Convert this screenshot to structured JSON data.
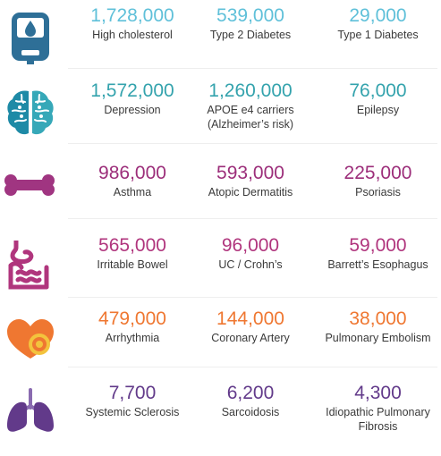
{
  "colors": {
    "row1": "#5fc0d9",
    "row2": "#34a3ad",
    "row3": "#9c2e7a",
    "row4": "#b0357d",
    "row5": "#ef7731",
    "row6": "#623a8a"
  },
  "rows": [
    {
      "icon": "glucose-meter-icon",
      "stats": [
        {
          "value": "1,728,000",
          "label": "High cholesterol"
        },
        {
          "value": "539,000",
          "label": "Type 2 Diabetes"
        },
        {
          "value": "29,000",
          "label": "Type 1 Diabetes"
        }
      ]
    },
    {
      "icon": "brain-icon",
      "stats": [
        {
          "value": "1,572,000",
          "label": "Depression"
        },
        {
          "value": "1,260,000",
          "label": "APOE e4 carriers",
          "label2": "(Alzheimer’s risk)"
        },
        {
          "value": "76,000",
          "label": "Epilepsy"
        }
      ]
    },
    {
      "icon": "bone-icon",
      "stats": [
        {
          "value": "986,000",
          "label": "Asthma"
        },
        {
          "value": "593,000",
          "label": "Atopic Dermatitis"
        },
        {
          "value": "225,000",
          "label": "Psoriasis"
        }
      ]
    },
    {
      "icon": "digestive-system-icon",
      "stats": [
        {
          "value": "565,000",
          "label": "Irritable Bowel"
        },
        {
          "value": "96,000",
          "label": "UC / Crohn’s"
        },
        {
          "value": "59,000",
          "label": "Barrett’s Esophagus"
        }
      ]
    },
    {
      "icon": "heart-icon",
      "stats": [
        {
          "value": "479,000",
          "label": "Arrhythmia"
        },
        {
          "value": "144,000",
          "label": "Coronary Artery"
        },
        {
          "value": "38,000",
          "label": "Pulmonary Embolism"
        }
      ]
    },
    {
      "icon": "lungs-icon",
      "stats": [
        {
          "value": "7,700",
          "label": "Systemic Sclerosis"
        },
        {
          "value": "6,200",
          "label": "Sarcoidosis"
        },
        {
          "value": "4,300",
          "label": "Idiopathic Pulmonary",
          "label2": "Fibrosis"
        }
      ]
    }
  ]
}
